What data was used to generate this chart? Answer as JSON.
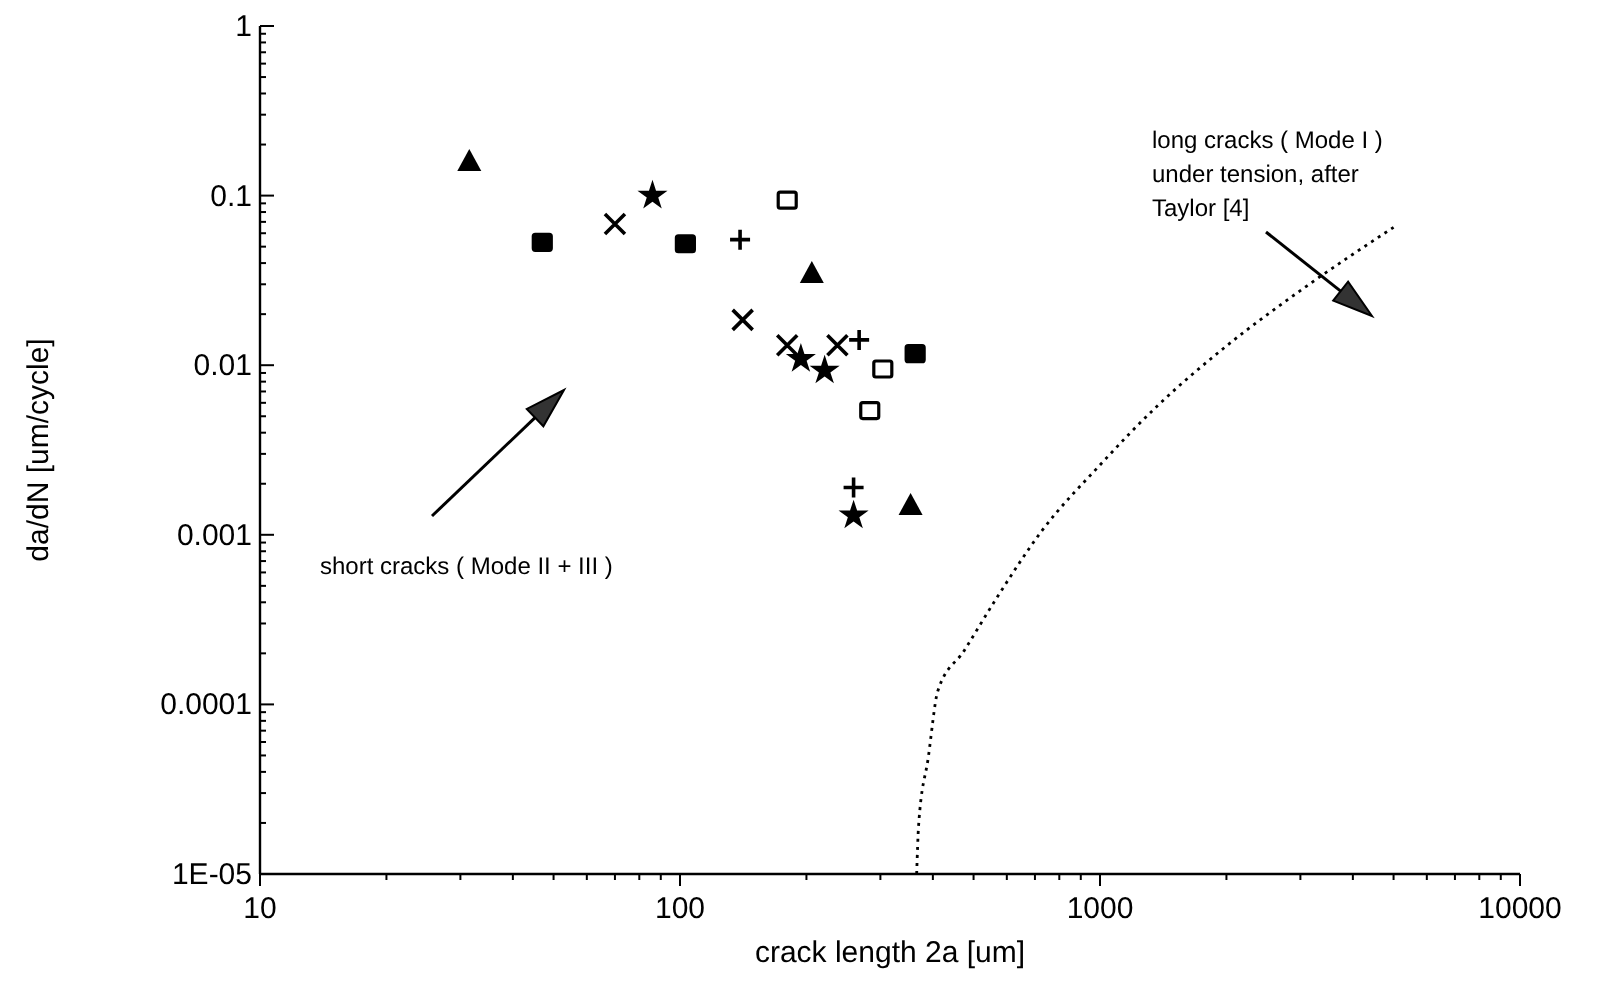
{
  "chart_data": {
    "type": "scatter",
    "xlabel": "crack length 2a [um]",
    "ylabel": "da/dN [um/cycle]",
    "log": "xy",
    "xlim": [
      10,
      10000
    ],
    "xticks": [
      10,
      100,
      1000,
      10000
    ],
    "ylim": [
      1e-05,
      1
    ],
    "yticks": [
      {
        "value": 1e-05,
        "label": "1E-05"
      },
      0.0001,
      0.001,
      0.01,
      0.1,
      1
    ],
    "series": [
      {
        "marker": "triangle",
        "color": "#000000",
        "x": [
          31.5,
          206,
          354
        ],
        "values": [
          0.16,
          0.035,
          0.0015
        ]
      },
      {
        "marker": "square",
        "color": "#000000",
        "x": [
          47,
          103,
          363
        ],
        "values": [
          0.053,
          0.052,
          0.0117
        ]
      },
      {
        "marker": "cross",
        "color": "#000000",
        "x": [
          70,
          141,
          180,
          237
        ],
        "values": [
          0.068,
          0.0185,
          0.0131,
          0.0131
        ]
      },
      {
        "marker": "star",
        "color": "#000000",
        "x": [
          86,
          194,
          221,
          259
        ],
        "values": [
          0.1,
          0.0109,
          0.0093,
          0.0013
        ]
      },
      {
        "marker": "plus",
        "color": "#000000",
        "x": [
          139,
          267,
          259
        ],
        "values": [
          0.055,
          0.0141,
          0.0019
        ]
      },
      {
        "marker": "square",
        "color": "#ffffff",
        "x": [
          180,
          304,
          283
        ],
        "values": [
          0.094,
          0.0095,
          0.0054
        ]
      },
      {
        "type": "line",
        "line_style": "dotted",
        "marker": "none",
        "color": "#000000",
        "x": [
          366,
          370,
          390,
          411,
          474,
          566,
          726,
          1000,
          1376,
          1963,
          3119,
          5000
        ],
        "values": [
          1e-05,
          1.95e-05,
          4.85e-05,
          0.00012,
          0.000206,
          0.00042,
          0.00105,
          0.00258,
          0.00582,
          0.0125,
          0.0295,
          0.065
        ]
      }
    ],
    "annotations": [
      "short cracks ( Mode II + III )",
      "long cracks ( Mode I )\nunder tension, after\nTaylor [4]"
    ]
  }
}
